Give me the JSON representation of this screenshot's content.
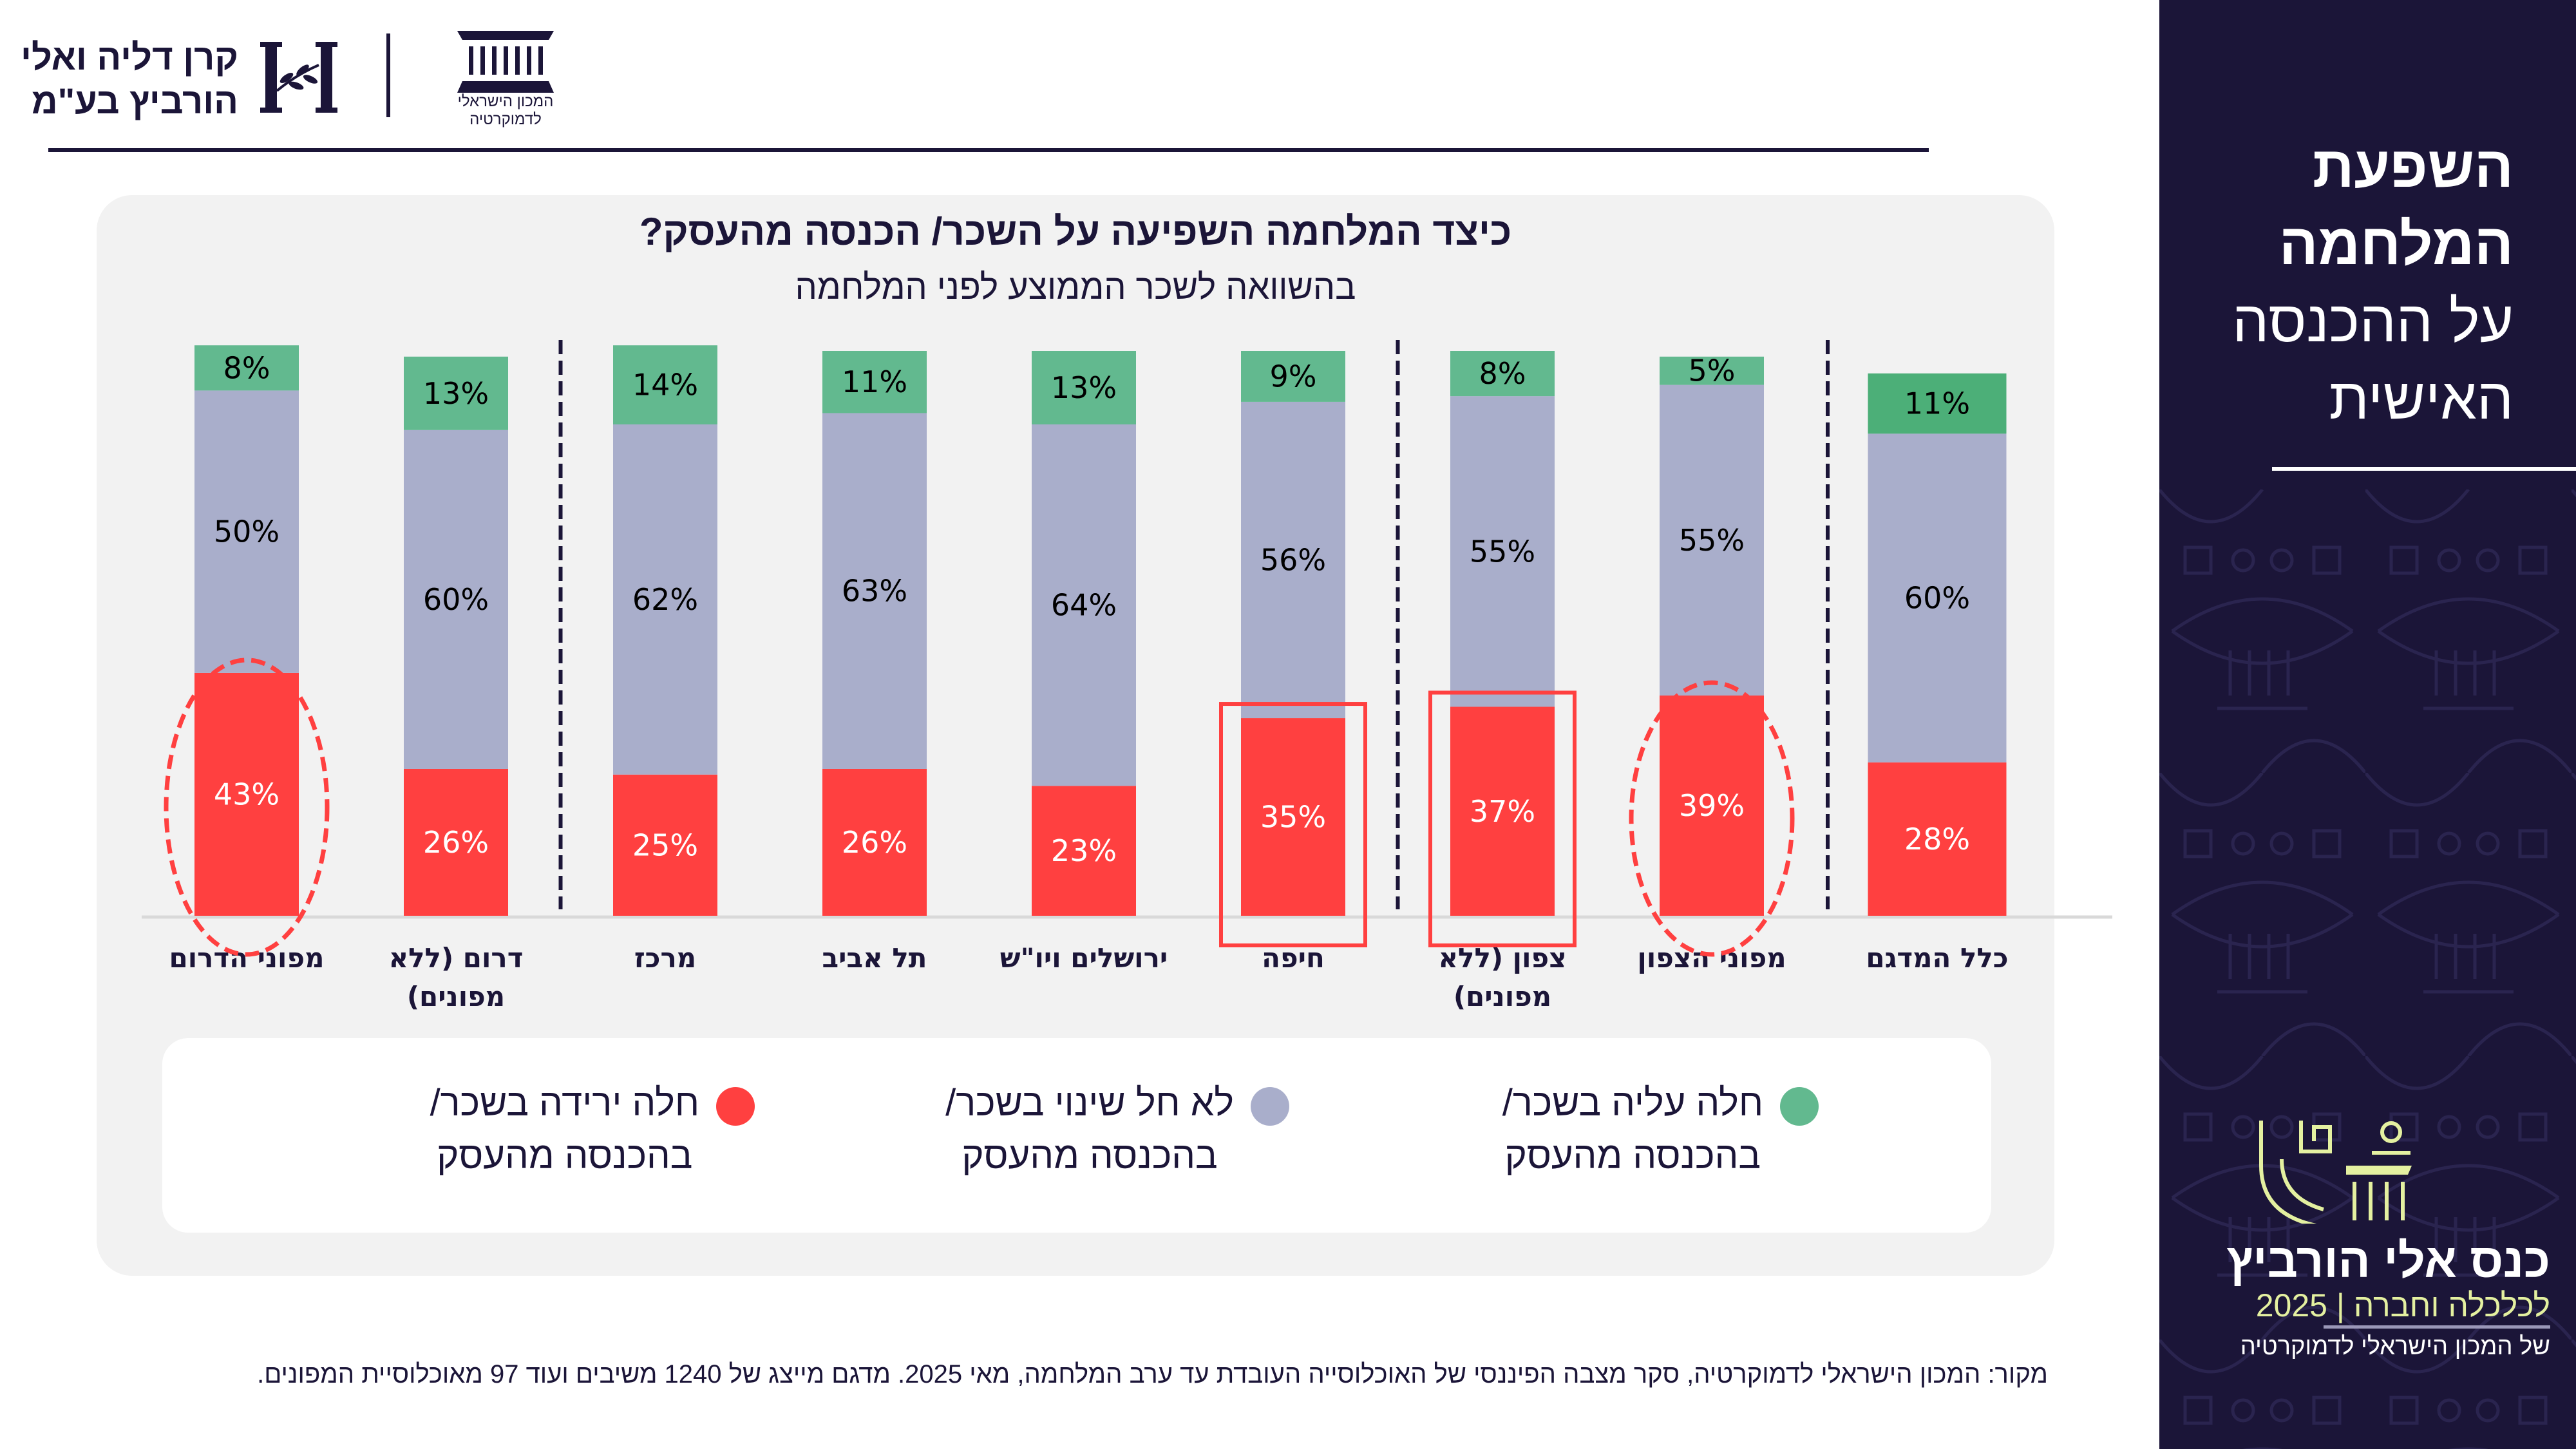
{
  "header": {
    "iid_logo_text_line1": "המכון הישראלי",
    "iid_logo_text_line2": "לדמוקרטיה",
    "horowitz_logo_line1": "קרן דליה ואלי",
    "horowitz_logo_line2": "הורביץ בע\"מ",
    "horowitz_logo_monogram": "H"
  },
  "sidebar": {
    "title_line1": "השפעת",
    "title_line2": "המלחמה",
    "title_line3": "על ההכנסה",
    "title_line4": "האישית",
    "conference_name": "כנס אלי הורביץ",
    "conference_subtitle": "לכלכלה וחברה | 2025",
    "conference_org": "של המכון הישראלי לדמוקרטיה"
  },
  "legend": [
    {
      "label_line1": "חלה עליה בשכר/",
      "label_line2": "בהכנסה מהעסק",
      "color": "#62b98f"
    },
    {
      "label_line1": "לא חל שינוי בשכר/",
      "label_line2": "בהכנסה מהעסק",
      "color": "#a9aecb"
    },
    {
      "label_line1": "חלה ירידה בשכר/",
      "label_line2": "בהכנסה מהעסק",
      "color": "#ff4040"
    }
  ],
  "footnote": "מקור: המכון הישראלי לדמוקרטיה, סקר מצבה הפיננסי של האוכלוסייה העובדת עד ערב המלחמה, מאי 2025. מדגם מייצג של 1240 משיבים ועוד 97 מאוכלוסיית המפונים.",
  "chart_data": {
    "type": "bar",
    "stacked": true,
    "title": "כיצד המלחמה השפיעה על השכר/ הכנסה מהעסק?",
    "subtitle": "בהשוואה לשכר הממוצע לפני המלחמה",
    "xlabel": "",
    "ylabel": "",
    "ylim": [
      0,
      100
    ],
    "unit": "%",
    "grid": false,
    "legend_position": "bottom",
    "categories": [
      {
        "label_line1": "כלל המדגם",
        "label_line2": ""
      },
      {
        "label_line1": "מפוני הצפון",
        "label_line2": ""
      },
      {
        "label_line1": "צפון (ללא",
        "label_line2": "מפונים)"
      },
      {
        "label_line1": "חיפה",
        "label_line2": ""
      },
      {
        "label_line1": "ירושלים ויו\"ש",
        "label_line2": ""
      },
      {
        "label_line1": "תל אביב",
        "label_line2": ""
      },
      {
        "label_line1": "מרכז",
        "label_line2": ""
      },
      {
        "label_line1": "דרום (ללא",
        "label_line2": "מפונים)"
      },
      {
        "label_line1": "מפוני הדרום",
        "label_line2": ""
      }
    ],
    "series": [
      {
        "name": "חלה ירידה בשכר/ בהכנסה מהעסק",
        "color": "#ff4040",
        "label_color": "#ffffff",
        "values": [
          28,
          39,
          37,
          35,
          23,
          26,
          25,
          26,
          43
        ]
      },
      {
        "name": "לא חל שינוי בשכר/ בהכנסה מהעסק",
        "color": "#a9aecb",
        "label_color": "#000000",
        "values": [
          60,
          55,
          55,
          56,
          64,
          63,
          62,
          60,
          50
        ]
      },
      {
        "name": "חלה עליה בשכר/ בהכנסה מהעסק",
        "color": "#62b98f",
        "label_color": "#000000",
        "values": [
          11,
          5,
          8,
          9,
          13,
          11,
          14,
          13,
          8
        ]
      }
    ],
    "overall_top_color": "#4caf78",
    "group_separators_after_category_index": [
      0,
      2,
      6
    ],
    "highlights": [
      {
        "category_index": 1,
        "series_index": 0,
        "shape": "dashed-ellipse"
      },
      {
        "category_index": 2,
        "series_index": 0,
        "shape": "box"
      },
      {
        "category_index": 3,
        "series_index": 0,
        "shape": "box"
      },
      {
        "category_index": 8,
        "series_index": 0,
        "shape": "dashed-ellipse"
      }
    ],
    "highlight_color": "#ff4040"
  }
}
